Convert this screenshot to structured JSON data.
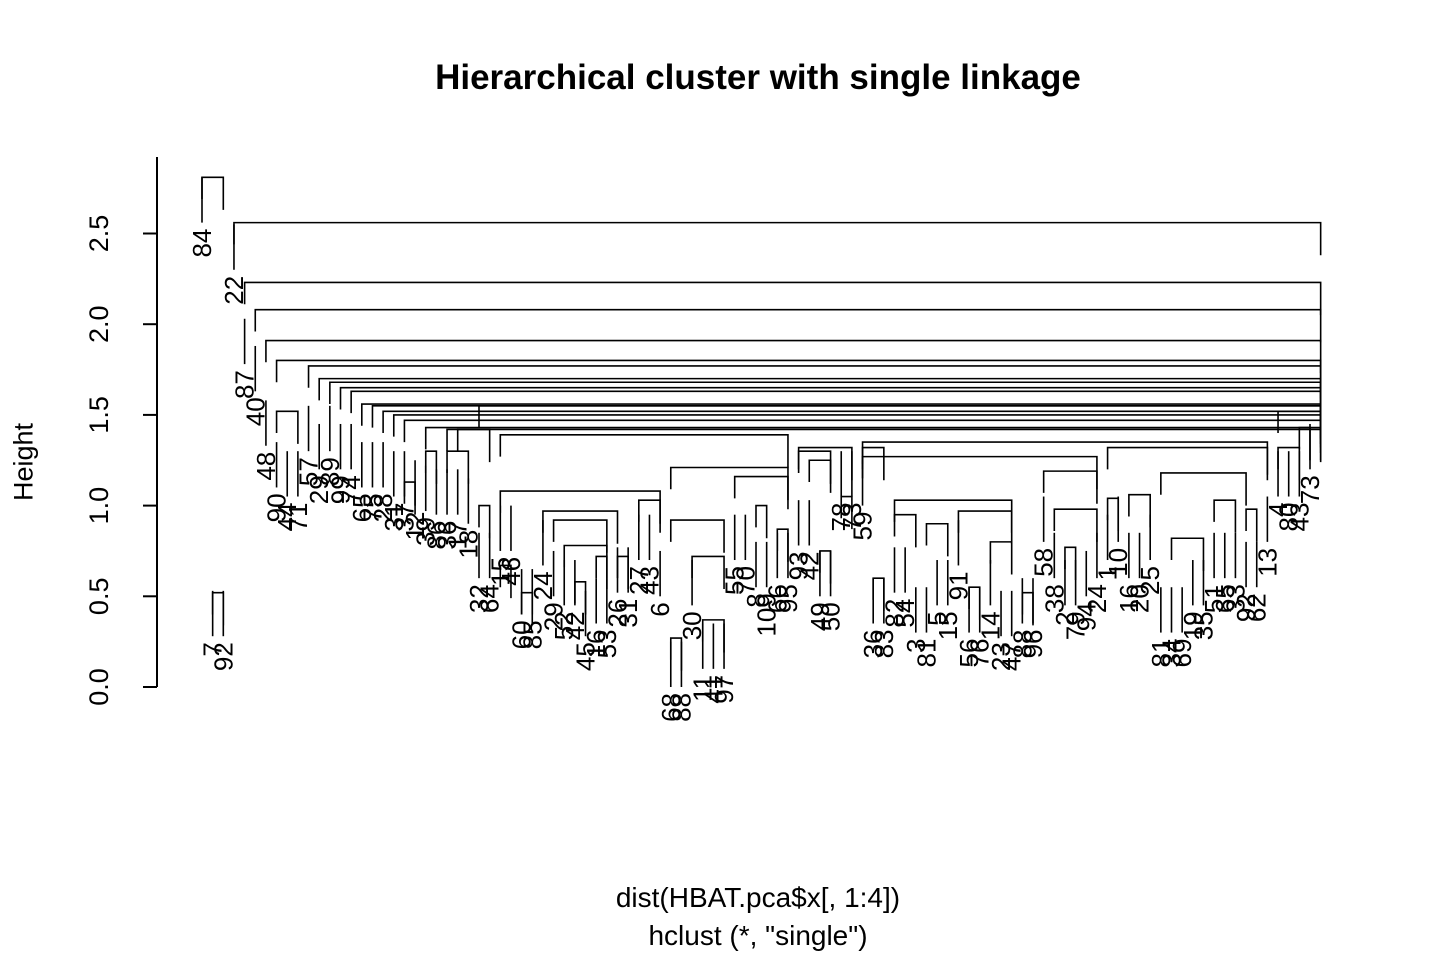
{
  "chart_data": {
    "type": "dendrogram",
    "title": "Hierarchical cluster with single linkage",
    "ylabel": "Height",
    "sub_lines": [
      "dist(HBAT.pca$x[, 1:4])",
      "hclust (*, \"single\")"
    ],
    "ylim": [
      0,
      2.9
    ],
    "yticks": [
      "0.0",
      "0.5",
      "1.0",
      "1.5",
      "2.0",
      "2.5"
    ],
    "yticks_values": [
      0.0,
      0.5,
      1.0,
      1.5,
      2.0,
      2.5
    ],
    "grid": false,
    "leaf_order": [
      "84",
      "7",
      "92",
      "22",
      "87",
      "40",
      "48",
      "90",
      "44",
      "71",
      "57",
      "29",
      "89",
      "99",
      "74",
      "65",
      "75",
      "28",
      "31",
      "37",
      "12",
      "39",
      "86",
      "36",
      "17",
      "18",
      "32",
      "64",
      "15",
      "46",
      "60",
      "85",
      "24",
      "29b",
      "52",
      "42",
      "45",
      "16",
      "53",
      "26",
      "31b",
      "27",
      "43",
      "6",
      "68",
      "88",
      "30",
      "11",
      "41",
      "97",
      "55",
      "70",
      "8",
      "109",
      "66",
      "95",
      "93",
      "42b",
      "49",
      "50",
      "78",
      "73",
      "59",
      "36b",
      "83",
      "82",
      "54",
      "3",
      "81",
      "5",
      "15b",
      "91",
      "56",
      "76",
      "14",
      "23",
      "47",
      "88b",
      "96",
      "58",
      "38",
      "2",
      "79",
      "94",
      "24b",
      "1",
      "10",
      "16b",
      "20",
      "25",
      "81b",
      "34",
      "69",
      "19",
      "35",
      "51",
      "65b",
      "33",
      "92b",
      "62",
      "13",
      "4",
      "80",
      "43b",
      "73b"
    ],
    "leaves": [
      {
        "label": "84",
        "h": 2.56
      },
      {
        "label": "7",
        "h": 0.28
      },
      {
        "label": "92",
        "h": 0.28
      },
      {
        "label": "22",
        "h": 2.3
      },
      {
        "label": "87",
        "h": 1.78
      },
      {
        "label": "40",
        "h": 1.63
      },
      {
        "label": "48",
        "h": 1.33
      },
      {
        "label": "90",
        "h": 1.1
      },
      {
        "label": "44",
        "h": 1.05
      },
      {
        "label": "71",
        "h": 1.05
      },
      {
        "label": "57",
        "h": 1.3
      },
      {
        "label": "29",
        "h": 1.2
      },
      {
        "label": "89",
        "h": 1.3
      },
      {
        "label": "99",
        "h": 1.2
      },
      {
        "label": "74",
        "h": 1.2
      },
      {
        "label": "65",
        "h": 1.1
      },
      {
        "label": "75",
        "h": 1.1
      },
      {
        "label": "28",
        "h": 1.1
      },
      {
        "label": "31",
        "h": 1.05
      },
      {
        "label": "37",
        "h": 1.05
      },
      {
        "label": "12",
        "h": 1.0
      },
      {
        "label": "39",
        "h": 0.97
      },
      {
        "label": "86",
        "h": 0.95
      },
      {
        "label": "36",
        "h": 0.95
      },
      {
        "label": "17",
        "h": 0.95
      },
      {
        "label": "18",
        "h": 0.9
      },
      {
        "label": "32",
        "h": 0.6
      },
      {
        "label": "64",
        "h": 0.6
      },
      {
        "label": "15",
        "h": 0.75
      },
      {
        "label": "46",
        "h": 0.75
      },
      {
        "label": "60",
        "h": 0.4
      },
      {
        "label": "85",
        "h": 0.4
      },
      {
        "label": "24",
        "h": 0.67
      },
      {
        "label": "29",
        "h": 0.5
      },
      {
        "label": "52",
        "h": 0.45
      },
      {
        "label": "42",
        "h": 0.45
      },
      {
        "label": "45",
        "h": 0.28
      },
      {
        "label": "16",
        "h": 0.35
      },
      {
        "label": "53",
        "h": 0.35
      },
      {
        "label": "26",
        "h": 0.52
      },
      {
        "label": "31",
        "h": 0.52
      },
      {
        "label": "27",
        "h": 0.7
      },
      {
        "label": "43",
        "h": 0.7
      },
      {
        "label": "6",
        "h": 0.5
      },
      {
        "label": "68",
        "h": 0.0
      },
      {
        "label": "88",
        "h": 0.0
      },
      {
        "label": "30",
        "h": 0.45
      },
      {
        "label": "11",
        "h": 0.1
      },
      {
        "label": "41",
        "h": 0.1
      },
      {
        "label": "97",
        "h": 0.1
      },
      {
        "label": "55",
        "h": 0.7
      },
      {
        "label": "70",
        "h": 0.7
      },
      {
        "label": "8",
        "h": 0.55
      },
      {
        "label": "109",
        "h": 0.55
      },
      {
        "label": "66",
        "h": 0.6
      },
      {
        "label": "95",
        "h": 0.6
      },
      {
        "label": "93",
        "h": 0.78
      },
      {
        "label": "42",
        "h": 0.78
      },
      {
        "label": "49",
        "h": 0.5
      },
      {
        "label": "50",
        "h": 0.5
      },
      {
        "label": "78",
        "h": 1.05
      },
      {
        "label": "73",
        "h": 1.05
      },
      {
        "label": "59",
        "h": 1.0
      },
      {
        "label": "36",
        "h": 0.35
      },
      {
        "label": "83",
        "h": 0.35
      },
      {
        "label": "82",
        "h": 0.52
      },
      {
        "label": "54",
        "h": 0.52
      },
      {
        "label": "3",
        "h": 0.3
      },
      {
        "label": "81",
        "h": 0.3
      },
      {
        "label": "5",
        "h": 0.45
      },
      {
        "label": "15",
        "h": 0.45
      },
      {
        "label": "91",
        "h": 0.67
      },
      {
        "label": "56",
        "h": 0.3
      },
      {
        "label": "76",
        "h": 0.3
      },
      {
        "label": "14",
        "h": 0.45
      },
      {
        "label": "23",
        "h": 0.28
      },
      {
        "label": "47",
        "h": 0.28
      },
      {
        "label": "88",
        "h": 0.35
      },
      {
        "label": "96",
        "h": 0.35
      },
      {
        "label": "58",
        "h": 0.8
      },
      {
        "label": "38",
        "h": 0.6
      },
      {
        "label": "2",
        "h": 0.45
      },
      {
        "label": "79",
        "h": 0.45
      },
      {
        "label": "94",
        "h": 0.5
      },
      {
        "label": "24",
        "h": 0.6
      },
      {
        "label": "1",
        "h": 0.7
      },
      {
        "label": "10",
        "h": 0.8
      },
      {
        "label": "16",
        "h": 0.6
      },
      {
        "label": "20",
        "h": 0.6
      },
      {
        "label": "25",
        "h": 0.7
      },
      {
        "label": "81",
        "h": 0.3
      },
      {
        "label": "34",
        "h": 0.3
      },
      {
        "label": "69",
        "h": 0.3
      },
      {
        "label": "19",
        "h": 0.45
      },
      {
        "label": "35",
        "h": 0.45
      },
      {
        "label": "51",
        "h": 0.6
      },
      {
        "label": "65",
        "h": 0.6
      },
      {
        "label": "33",
        "h": 0.6
      },
      {
        "label": "92",
        "h": 0.55
      },
      {
        "label": "62",
        "h": 0.55
      },
      {
        "label": "13",
        "h": 0.8
      },
      {
        "label": "4",
        "h": 1.05
      },
      {
        "label": "80",
        "h": 1.05
      },
      {
        "label": "43",
        "h": 1.05
      },
      {
        "label": "73",
        "h": 1.2
      }
    ]
  }
}
